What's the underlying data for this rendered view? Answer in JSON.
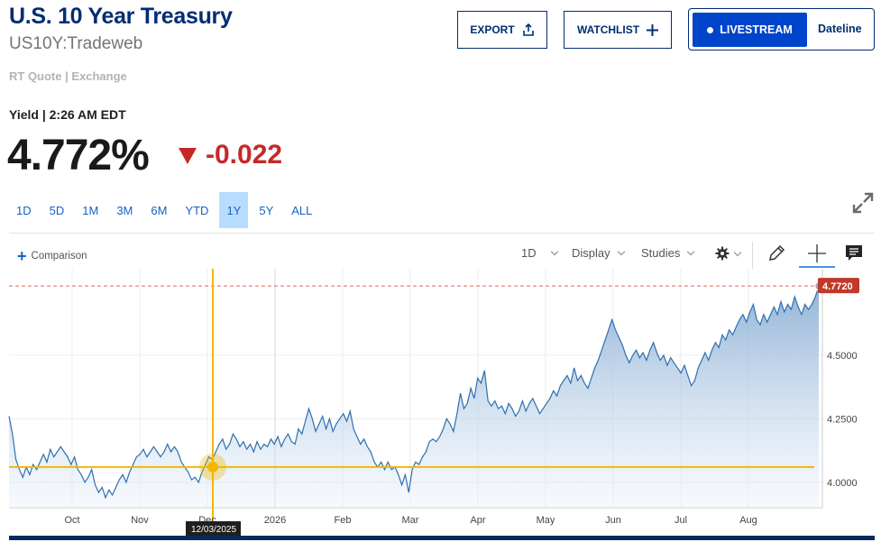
{
  "header": {
    "title": "U.S. 10 Year Treasury",
    "symbol": "US10Y:Tradeweb",
    "rt_quote": "RT Quote | Exchange"
  },
  "actions": {
    "export_label": "EXPORT",
    "watchlist_label": "WATCHLIST",
    "livestream_label": "LIVESTREAM",
    "dateline_label": "Dateline"
  },
  "quote": {
    "yield_time": "Yield | 2:26 AM EDT",
    "last": "4.772%",
    "change": "-0.022",
    "change_color": "#c62828"
  },
  "ranges": {
    "items": [
      "1D",
      "5D",
      "1M",
      "3M",
      "6M",
      "YTD",
      "1Y",
      "5Y",
      "ALL"
    ],
    "active": "1Y"
  },
  "toolbar": {
    "comparison_label": "Comparison",
    "interval_label": "1D",
    "display_label": "Display",
    "studies_label": "Studies"
  },
  "icons": {
    "export": "share-icon",
    "watchlist": "plus-icon",
    "expand": "expand-icon",
    "settings": "gear-icon",
    "draw": "pencil-icon",
    "crosshair": "crosshair-icon",
    "comments": "chat-icon"
  },
  "chart_data": {
    "type": "area",
    "series": [
      {
        "values": [
          4.26,
          4.19,
          4.09,
          4.05,
          4.02,
          4.06,
          4.03,
          4.07,
          4.05,
          4.08,
          4.11,
          4.08,
          4.13,
          4.1,
          4.12,
          4.14,
          4.12,
          4.1,
          4.07,
          4.1,
          4.05,
          4.03,
          4.0,
          4.02,
          4.05,
          3.99,
          3.96,
          3.98,
          3.94,
          3.97,
          3.95,
          3.98,
          4.01,
          4.03,
          4.0,
          4.04,
          4.07,
          4.1,
          4.11,
          4.13,
          4.1,
          4.12,
          4.14,
          4.12,
          4.1,
          4.12,
          4.15,
          4.12,
          4.14,
          4.12,
          4.08,
          4.06,
          4.04,
          4.01,
          4.02,
          4.0,
          4.04,
          4.07,
          4.1,
          4.09,
          4.12,
          4.15,
          4.17,
          4.13,
          4.15,
          4.19,
          4.17,
          4.14,
          4.16,
          4.13,
          4.15,
          4.12,
          4.16,
          4.13,
          4.15,
          4.14,
          4.17,
          4.15,
          4.18,
          4.14,
          4.17,
          4.19,
          4.16,
          4.15,
          4.21,
          4.19,
          4.24,
          4.29,
          4.25,
          4.2,
          4.23,
          4.26,
          4.21,
          4.25,
          4.2,
          4.23,
          4.25,
          4.27,
          4.24,
          4.28,
          4.21,
          4.18,
          4.15,
          4.17,
          4.14,
          4.12,
          4.08,
          4.06,
          4.08,
          4.05,
          4.08,
          4.05,
          4.06,
          4.03,
          3.99,
          4.03,
          3.96,
          4.05,
          4.08,
          4.07,
          4.1,
          4.12,
          4.16,
          4.17,
          4.16,
          4.18,
          4.21,
          4.25,
          4.23,
          4.2,
          4.27,
          4.35,
          4.29,
          4.31,
          4.37,
          4.33,
          4.41,
          4.39,
          4.44,
          4.32,
          4.3,
          4.32,
          4.29,
          4.3,
          4.27,
          4.31,
          4.29,
          4.26,
          4.28,
          4.32,
          4.28,
          4.31,
          4.33,
          4.3,
          4.27,
          4.29,
          4.31,
          4.33,
          4.36,
          4.34,
          4.38,
          4.4,
          4.42,
          4.39,
          4.45,
          4.4,
          4.42,
          4.39,
          4.37,
          4.41,
          4.45,
          4.48,
          4.52,
          4.56,
          4.6,
          4.64,
          4.6,
          4.57,
          4.54,
          4.5,
          4.47,
          4.5,
          4.52,
          4.49,
          4.51,
          4.48,
          4.52,
          4.55,
          4.51,
          4.48,
          4.5,
          4.46,
          4.49,
          4.47,
          4.45,
          4.43,
          4.46,
          4.42,
          4.38,
          4.4,
          4.45,
          4.48,
          4.51,
          4.48,
          4.52,
          4.55,
          4.53,
          4.58,
          4.56,
          4.6,
          4.58,
          4.61,
          4.64,
          4.66,
          4.63,
          4.67,
          4.7,
          4.64,
          4.62,
          4.66,
          4.63,
          4.66,
          4.69,
          4.66,
          4.71,
          4.67,
          4.7,
          4.68,
          4.73,
          4.69,
          4.66,
          4.7,
          4.68,
          4.7,
          4.73,
          4.77
        ]
      }
    ],
    "x_ticks": [
      "Oct",
      "Nov",
      "Dec",
      "2026",
      "Feb",
      "Mar",
      "Apr",
      "May",
      "Jun",
      "Jul",
      "Aug"
    ],
    "y_ticks": [
      "4.0000",
      "4.2500",
      "4.5000"
    ],
    "ylim": [
      3.9,
      4.84
    ],
    "last_label": "4.7720",
    "last_value": 4.772,
    "crosshair": {
      "date_label": "12/03/2025",
      "value": 4.06
    },
    "colors": {
      "line": "#2e6fb0",
      "crosshair": "#f2b705",
      "last_badge": "#c0392b",
      "reference_line": "#e06666"
    }
  }
}
